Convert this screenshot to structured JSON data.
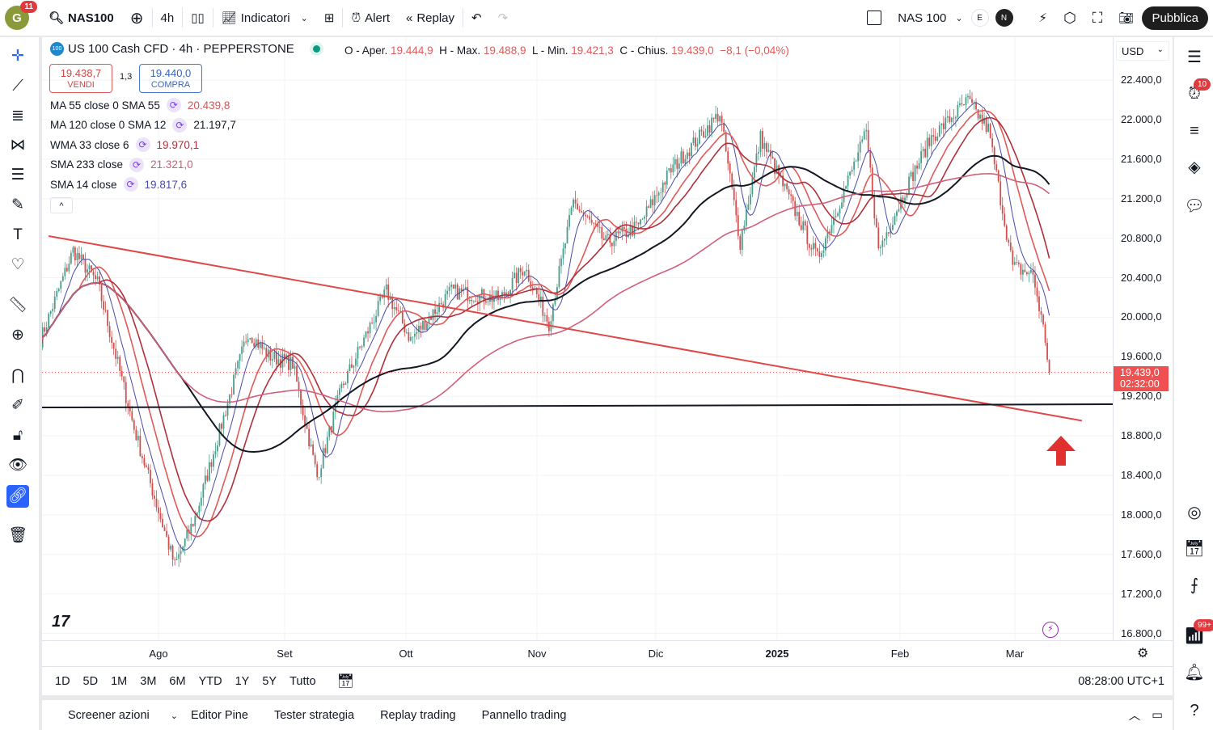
{
  "topbar": {
    "avatar_letter": "G",
    "notif_count": "11",
    "symbol": "NAS100",
    "interval": "4h",
    "indicators": "Indicatori",
    "alert": "Alert",
    "replay": "Replay",
    "compare_symbol": "NAS 100",
    "e_label": "E",
    "n_label": "N",
    "publish": "Pubblica"
  },
  "legend": {
    "title": "US 100 Cash CFD · 4h · PEPPERSTONE",
    "badge": "100",
    "o_label": "O - Aper.",
    "o": "19.444,9",
    "h_label": "H - Max.",
    "h": "19.488,9",
    "l_label": "L - Min.",
    "l": "19.421,3",
    "c_label": "C - Chius.",
    "c": "19.439,0",
    "change": "−8,1 (−0,04%)",
    "sell_price": "19.438,7",
    "sell_label": "VENDI",
    "spread": "1,3",
    "buy_price": "19.440,0",
    "buy_label": "COMPRA",
    "indicators": [
      {
        "name": "MA 55 close 0 SMA 55",
        "value": "20.439,8",
        "color": "#e05a5a"
      },
      {
        "name": "MA 120 close 0 SMA 12",
        "value": "21.197,7",
        "color": "#131722"
      },
      {
        "name": "WMA 33 close 6",
        "value": "19.970,1",
        "color": "#b0303a"
      },
      {
        "name": "SMA 233 close",
        "value": "21.321,0",
        "color": "#d0607a"
      },
      {
        "name": "SMA 14 close",
        "value": "19.817,6",
        "color": "#4a4aa8"
      }
    ]
  },
  "yaxis": {
    "currency": "USD",
    "ticks": [
      "22.400,0",
      "22.000,0",
      "21.600,0",
      "21.200,0",
      "20.800,0",
      "20.400,0",
      "20.000,0",
      "19.600,0",
      "19.200,0",
      "18.800,0",
      "18.400,0",
      "18.000,0",
      "17.600,0",
      "17.200,0",
      "16.800,0"
    ],
    "last_price": "19.439,0",
    "countdown": "02:32:00"
  },
  "xaxis": {
    "labels": [
      "Ago",
      "Set",
      "Ott",
      "Nov",
      "Dic",
      "2025",
      "Feb",
      "Mar"
    ]
  },
  "range": {
    "buttons": [
      "1D",
      "5D",
      "1M",
      "3M",
      "6M",
      "YTD",
      "1Y",
      "5Y",
      "Tutto"
    ],
    "clock": "08:28:00 UTC+1"
  },
  "bottom": {
    "tabs": [
      "Screener azioni",
      "Editor Pine",
      "Tester strategia",
      "Replay trading",
      "Pannello trading"
    ]
  },
  "rightbar": {
    "alerts_badge": "10",
    "notif_badge": "99+"
  },
  "chart_data": {
    "type": "candlestick",
    "series_name": "NAS100 4h",
    "x_unit": "days since Jul 1 2024",
    "price_path": [
      [
        2,
        19772
      ],
      [
        10,
        20673
      ],
      [
        16,
        20345
      ],
      [
        25,
        18871
      ],
      [
        35,
        17480
      ],
      [
        40,
        17971
      ],
      [
        53,
        19854
      ],
      [
        58,
        19608
      ],
      [
        64,
        19526
      ],
      [
        70,
        18380
      ],
      [
        76,
        19281
      ],
      [
        87,
        20263
      ],
      [
        93,
        19772
      ],
      [
        103,
        20263
      ],
      [
        115,
        20181
      ],
      [
        121,
        20509
      ],
      [
        127,
        19936
      ],
      [
        133,
        21164
      ],
      [
        141,
        20754
      ],
      [
        149,
        20918
      ],
      [
        157,
        21491
      ],
      [
        169,
        22064
      ],
      [
        174,
        20754
      ],
      [
        179,
        21819
      ],
      [
        193,
        20591
      ],
      [
        205,
        21860
      ],
      [
        208,
        20673
      ],
      [
        215,
        21327
      ],
      [
        221,
        21819
      ],
      [
        230,
        22187
      ],
      [
        235,
        21901
      ],
      [
        241,
        20509
      ],
      [
        246,
        20427
      ],
      [
        249,
        19772
      ],
      [
        250,
        19439
      ]
    ],
    "ylim": [
      16800,
      22400
    ],
    "support_level": 19100,
    "trendline": [
      [
        4,
        20820
      ],
      [
        258,
        18950
      ]
    ]
  }
}
